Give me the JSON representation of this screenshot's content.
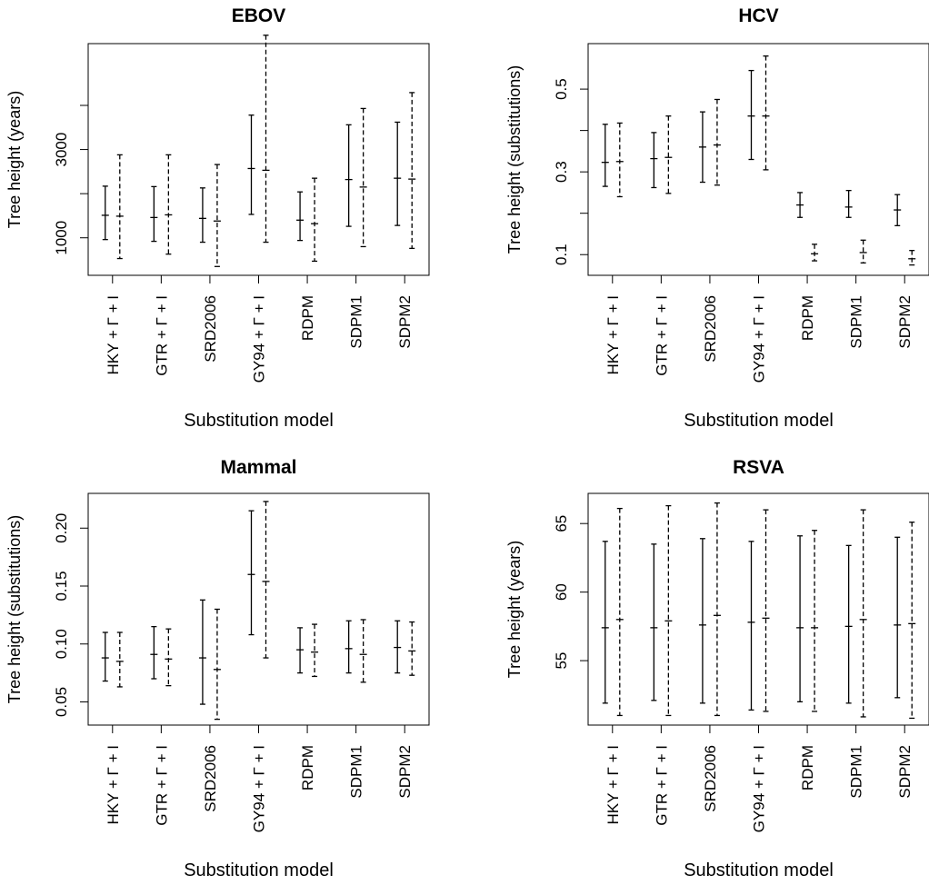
{
  "chart_data": [
    {
      "type": "errorbar",
      "title": "EBOV",
      "xlabel": "Substitution model",
      "ylabel": "Tree height (years)",
      "categories": [
        "HKY + Γ + I",
        "GTR + Γ + I",
        "SRD2006",
        "GY94 + Γ + I",
        "RDPM",
        "SDPM1",
        "SDPM2"
      ],
      "yticks": [
        1000,
        3000
      ],
      "yticks_minor": [
        2000,
        4000
      ],
      "ylim": [
        150,
        5400
      ],
      "series": [
        {
          "style": "solid",
          "lower": [
            960,
            920,
            900,
            1530,
            940,
            1260,
            1280
          ],
          "mean": [
            1510,
            1460,
            1440,
            2570,
            1400,
            2320,
            2350
          ],
          "upper": [
            2170,
            2160,
            2130,
            3780,
            2040,
            3560,
            3620
          ]
        },
        {
          "style": "dashed",
          "lower": [
            530,
            630,
            350,
            900,
            470,
            800,
            760
          ],
          "mean": [
            1490,
            1520,
            1380,
            2530,
            1320,
            2150,
            2330
          ],
          "upper": [
            2880,
            2880,
            2660,
            5590,
            2350,
            3930,
            4290
          ]
        }
      ]
    },
    {
      "type": "errorbar",
      "title": "HCV",
      "xlabel": "Substitution model",
      "ylabel": "Tree height (substitutions)",
      "categories": [
        "HKY + Γ + I",
        "GTR + Γ + I",
        "SRD2006",
        "GY94 + Γ + I",
        "RDPM",
        "SDPM1",
        "SDPM2"
      ],
      "yticks": [
        0.1,
        0.3,
        0.5
      ],
      "yticks_minor": [
        0.2,
        0.4
      ],
      "ylim": [
        0.05,
        0.61
      ],
      "series": [
        {
          "style": "solid",
          "lower": [
            0.265,
            0.262,
            0.275,
            0.33,
            0.19,
            0.19,
            0.17
          ],
          "mean": [
            0.323,
            0.332,
            0.36,
            0.435,
            0.22,
            0.215,
            0.208
          ],
          "upper": [
            0.415,
            0.395,
            0.445,
            0.545,
            0.25,
            0.255,
            0.245
          ]
        },
        {
          "style": "dashed",
          "lower": [
            0.24,
            0.248,
            0.268,
            0.305,
            0.085,
            0.08,
            0.075
          ],
          "mean": [
            0.325,
            0.335,
            0.365,
            0.435,
            0.102,
            0.105,
            0.09
          ],
          "upper": [
            0.418,
            0.435,
            0.475,
            0.58,
            0.125,
            0.135,
            0.11
          ]
        }
      ]
    },
    {
      "type": "errorbar",
      "title": "Mammal",
      "xlabel": "Substitution model",
      "ylabel": "Tree height (substitutions)",
      "categories": [
        "HKY + Γ + I",
        "GTR + Γ + I",
        "SRD2006",
        "GY94 + Γ + I",
        "RDPM",
        "SDPM1",
        "SDPM2"
      ],
      "yticks": [
        0.05,
        0.1,
        0.15,
        0.2
      ],
      "yticks_labels": [
        "0.05",
        "0.10",
        "0.15",
        "0.20"
      ],
      "ylim": [
        0.03,
        0.23
      ],
      "series": [
        {
          "style": "solid",
          "lower": [
            0.068,
            0.07,
            0.048,
            0.108,
            0.075,
            0.075,
            0.075
          ],
          "mean": [
            0.088,
            0.091,
            0.088,
            0.16,
            0.095,
            0.096,
            0.097
          ],
          "upper": [
            0.11,
            0.115,
            0.138,
            0.215,
            0.114,
            0.12,
            0.12
          ]
        },
        {
          "style": "dashed",
          "lower": [
            0.063,
            0.064,
            0.035,
            0.088,
            0.072,
            0.067,
            0.073
          ],
          "mean": [
            0.085,
            0.087,
            0.078,
            0.154,
            0.093,
            0.091,
            0.094
          ],
          "upper": [
            0.11,
            0.113,
            0.13,
            0.223,
            0.117,
            0.121,
            0.119
          ]
        }
      ]
    },
    {
      "type": "errorbar",
      "title": "RSVA",
      "xlabel": "Substitution model",
      "ylabel": "Tree height (years)",
      "categories": [
        "HKY + Γ + I",
        "GTR + Γ + I",
        "SRD2006",
        "GY94 + Γ + I",
        "RDPM",
        "SDPM1",
        "SDPM2"
      ],
      "yticks": [
        55,
        60,
        65
      ],
      "ylim": [
        50.3,
        67.2
      ],
      "series": [
        {
          "style": "solid",
          "lower": [
            51.9,
            52.1,
            51.9,
            51.4,
            52.0,
            51.9,
            52.3
          ],
          "mean": [
            57.4,
            57.4,
            57.6,
            57.8,
            57.4,
            57.5,
            57.6
          ],
          "upper": [
            63.7,
            63.5,
            63.9,
            63.7,
            64.1,
            63.4,
            64.0
          ]
        },
        {
          "style": "dashed",
          "lower": [
            51.0,
            51.0,
            51.0,
            51.3,
            51.3,
            50.9,
            50.8
          ],
          "mean": [
            58.0,
            57.9,
            58.3,
            58.1,
            57.4,
            58.0,
            57.7
          ],
          "upper": [
            66.1,
            66.3,
            66.5,
            66.0,
            64.5,
            66.0,
            65.1
          ]
        }
      ]
    }
  ]
}
